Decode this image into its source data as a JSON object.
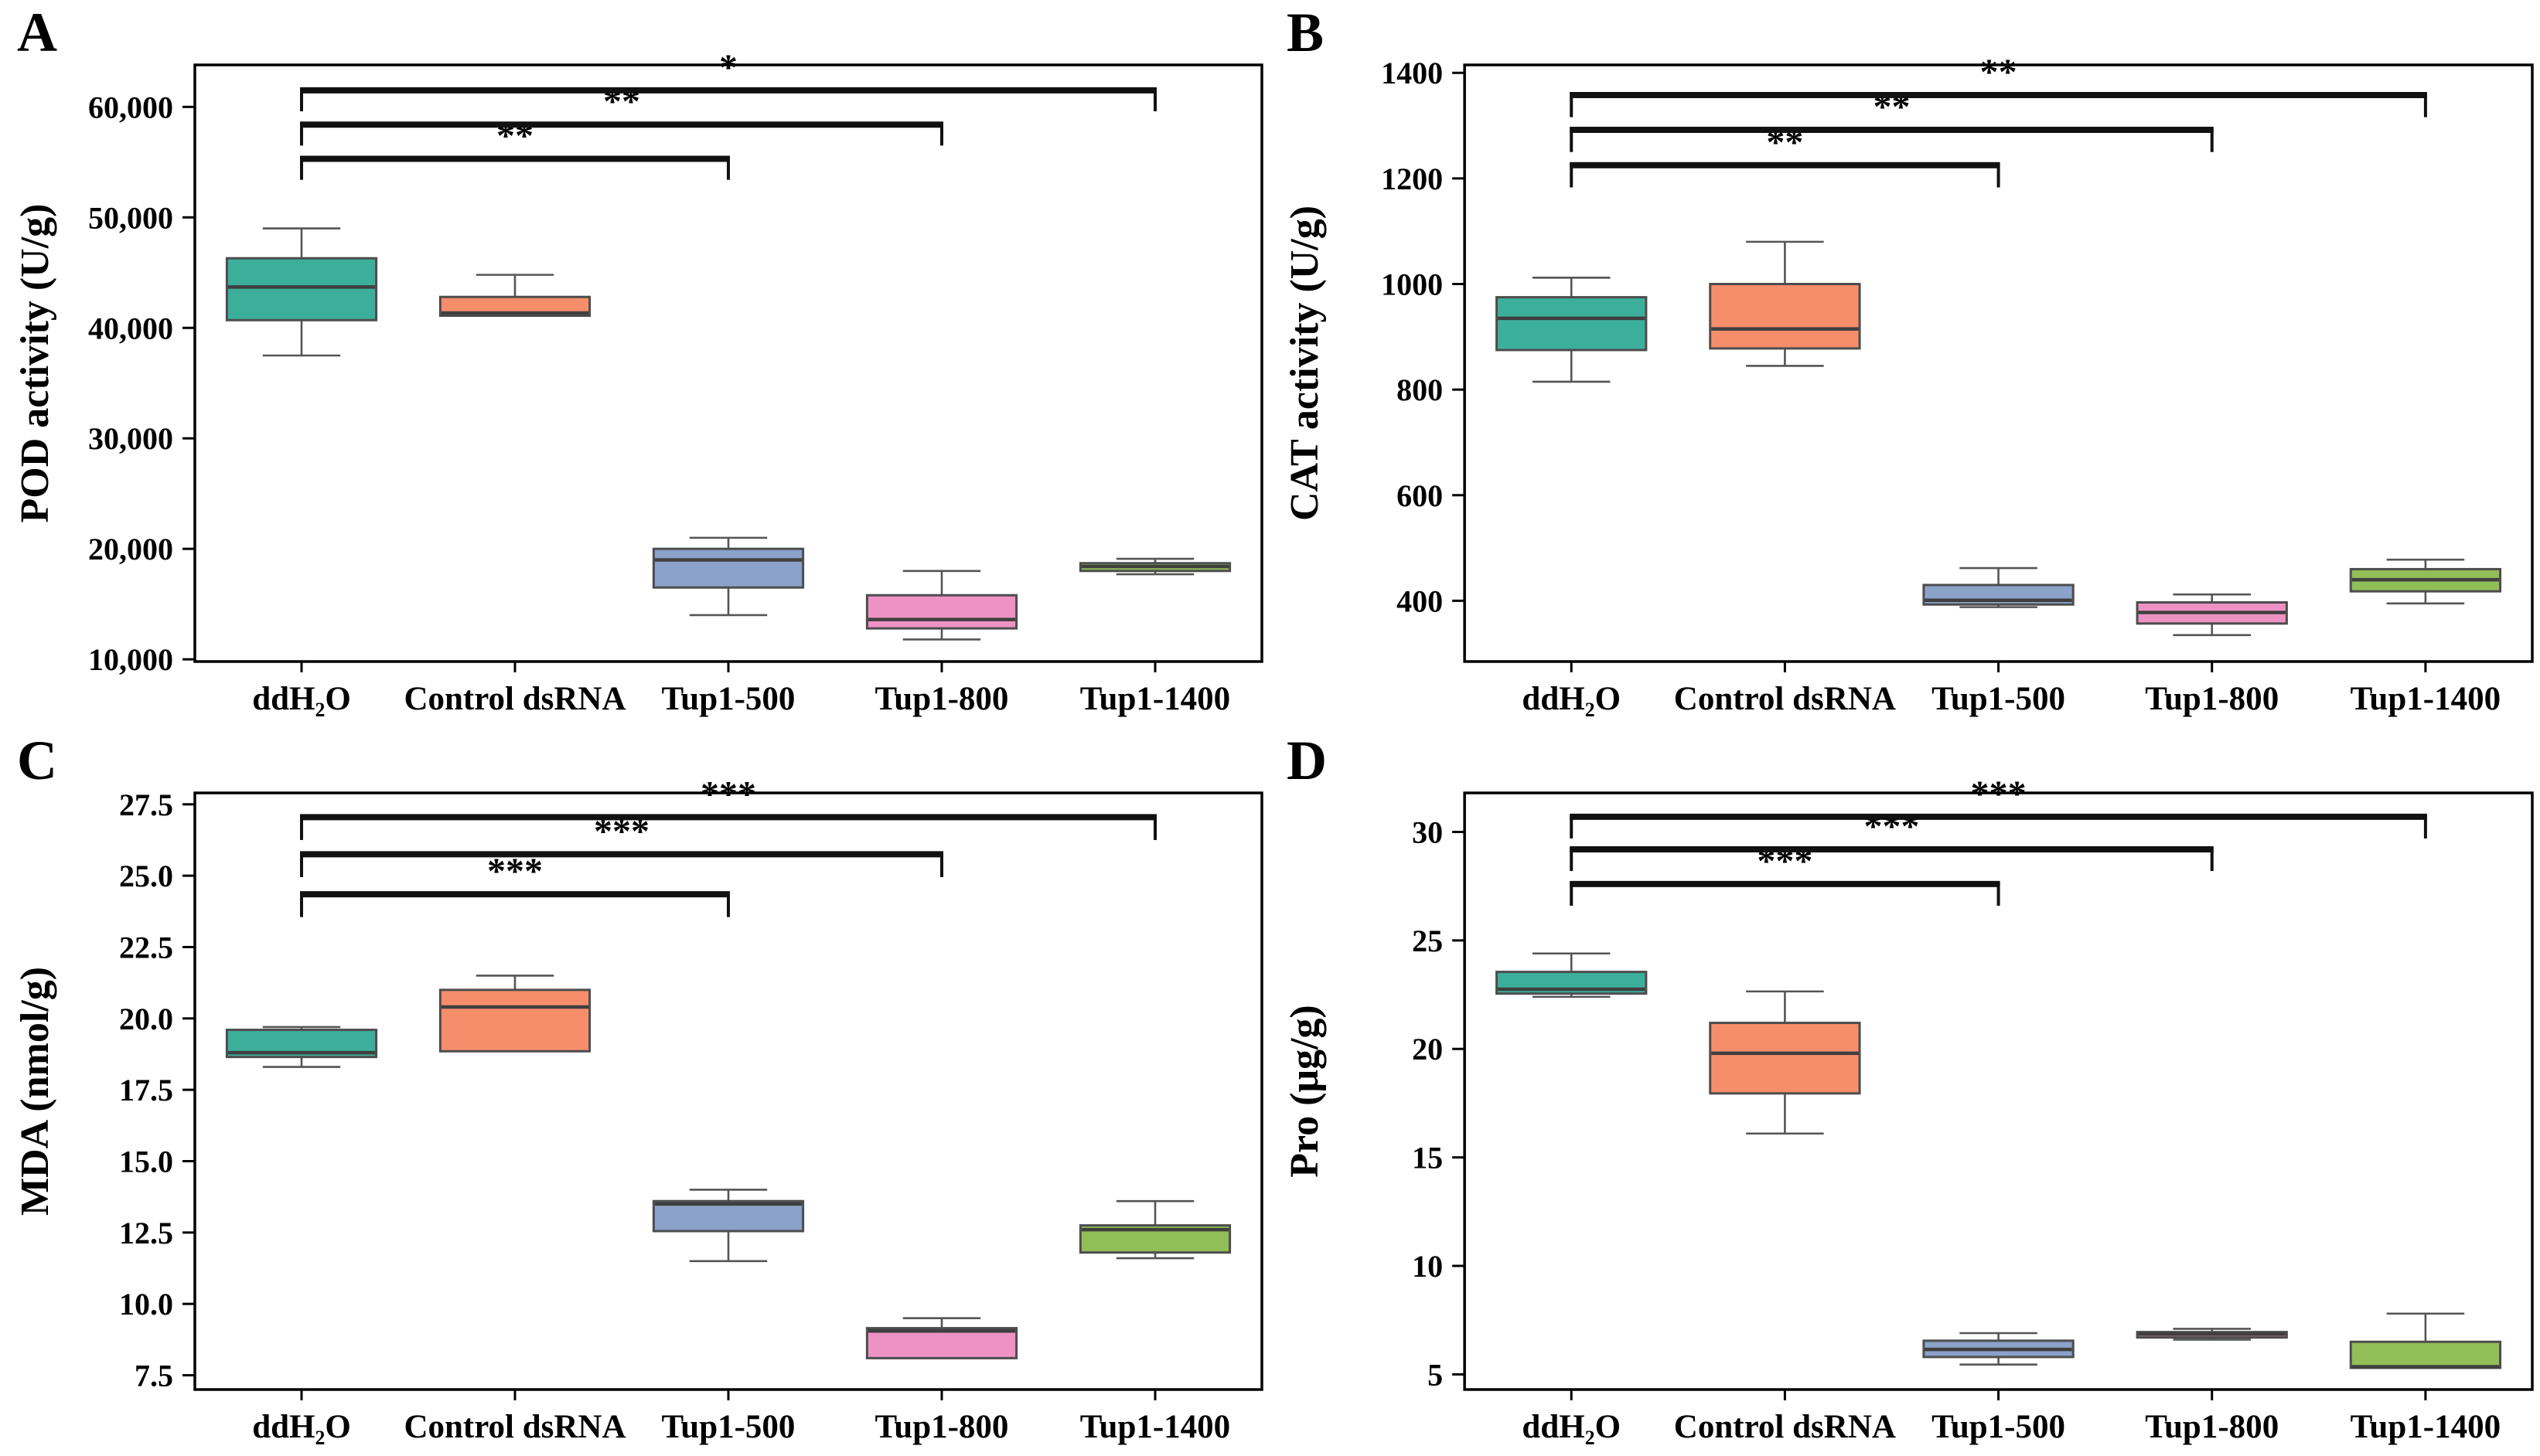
{
  "figure": {
    "background": "#ffffff"
  },
  "style": {
    "box_colors": [
      "#3CAF9B",
      "#F78E6B",
      "#8BA2CA",
      "#EE92C4",
      "#92BE57"
    ],
    "edge_color": "#4d4d4d",
    "whisker_color": "#555555",
    "median_color": "#3f3f3f",
    "axis_color": "#000000",
    "bracket_color": "#111111",
    "star_color": "#333333"
  },
  "chart_data": [
    {
      "type": "box",
      "panel_label": "A",
      "ylabel": "POD activity (U/g)",
      "ylim": [
        9800,
        63800
      ],
      "ytick_values": [
        10000,
        20000,
        30000,
        40000,
        50000,
        60000
      ],
      "ytick_labels": [
        "10,000",
        "20,000",
        "30,000",
        "40,000",
        "50,000",
        "60,000"
      ],
      "categories": [
        "ddH₂O",
        "Control dsRNA",
        "Tup1-500",
        "Tup1-800",
        "Tup1-1400"
      ],
      "series": [
        {
          "name": "ddH₂O",
          "min": 37500,
          "q1": 40700,
          "median": 43700,
          "q3": 46300,
          "max": 49000
        },
        {
          "name": "Control dsRNA",
          "min": 41100,
          "q1": 41100,
          "median": 41350,
          "q3": 42800,
          "max": 44800
        },
        {
          "name": "Tup1-500",
          "min": 14000,
          "q1": 16500,
          "median": 19000,
          "q3": 20000,
          "max": 21000
        },
        {
          "name": "Tup1-800",
          "min": 11800,
          "q1": 12800,
          "median": 13600,
          "q3": 15800,
          "max": 18000
        },
        {
          "name": "Tup1-1400",
          "min": 17700,
          "q1": 18000,
          "median": 18400,
          "q3": 18700,
          "max": 19100
        }
      ],
      "significance": [
        {
          "from": 0,
          "to": 2,
          "label": "**",
          "y": 55300,
          "drop": 1900
        },
        {
          "from": 0,
          "to": 3,
          "label": "**",
          "y": 58400,
          "drop": 1900
        },
        {
          "from": 0,
          "to": 4,
          "label": "*",
          "y": 61500,
          "drop": 1900
        }
      ]
    },
    {
      "type": "box",
      "panel_label": "B",
      "ylabel": "CAT activity (U/g)",
      "ylim": [
        285,
        1415
      ],
      "ytick_values": [
        400,
        600,
        800,
        1000,
        1200,
        1400
      ],
      "ytick_labels": [
        "400",
        "600",
        "800",
        "1000",
        "1200",
        "1400"
      ],
      "categories": [
        "ddH₂O",
        "Control dsRNA",
        "Tup1-500",
        "Tup1-800",
        "Tup1-1400"
      ],
      "series": [
        {
          "name": "ddH₂O",
          "min": 815,
          "q1": 875,
          "median": 935,
          "q3": 975,
          "max": 1012
        },
        {
          "name": "Control dsRNA",
          "min": 845,
          "q1": 878,
          "median": 915,
          "q3": 1000,
          "max": 1080
        },
        {
          "name": "Tup1-500",
          "min": 388,
          "q1": 393,
          "median": 401,
          "q3": 430,
          "max": 462
        },
        {
          "name": "Tup1-800",
          "min": 335,
          "q1": 357,
          "median": 378,
          "q3": 397,
          "max": 412
        },
        {
          "name": "Tup1-1400",
          "min": 395,
          "q1": 418,
          "median": 440,
          "q3": 460,
          "max": 478
        }
      ],
      "significance": [
        {
          "from": 0,
          "to": 2,
          "label": "**",
          "y": 1225,
          "drop": 42
        },
        {
          "from": 0,
          "to": 3,
          "label": "**",
          "y": 1292,
          "drop": 42
        },
        {
          "from": 0,
          "to": 4,
          "label": "**",
          "y": 1358,
          "drop": 42
        }
      ]
    },
    {
      "type": "box",
      "panel_label": "C",
      "ylabel": "MDA (nmol/g)",
      "ylim": [
        7.0,
        27.9
      ],
      "ytick_values": [
        7.5,
        10.0,
        12.5,
        15.0,
        17.5,
        20.0,
        22.5,
        25.0,
        27.5
      ],
      "ytick_labels": [
        "7.5",
        "10.0",
        "12.5",
        "15.0",
        "17.5",
        "20.0",
        "22.5",
        "25.0",
        "27.5"
      ],
      "categories": [
        "ddH₂O",
        "Control dsRNA",
        "Tup1-500",
        "Tup1-800",
        "Tup1-1400"
      ],
      "series": [
        {
          "name": "ddH₂O",
          "min": 18.3,
          "q1": 18.65,
          "median": 18.8,
          "q3": 19.6,
          "max": 19.7
        },
        {
          "name": "Control dsRNA",
          "min": 18.85,
          "q1": 18.85,
          "median": 20.4,
          "q3": 21.0,
          "max": 21.5
        },
        {
          "name": "Tup1-500",
          "min": 11.5,
          "q1": 12.55,
          "median": 13.5,
          "q3": 13.6,
          "max": 14.0
        },
        {
          "name": "Tup1-800",
          "min": 8.1,
          "q1": 8.1,
          "median": 9.05,
          "q3": 9.15,
          "max": 9.5
        },
        {
          "name": "Tup1-1400",
          "min": 11.6,
          "q1": 11.8,
          "median": 12.6,
          "q3": 12.75,
          "max": 13.6
        }
      ],
      "significance": [
        {
          "from": 0,
          "to": 2,
          "label": "***",
          "y": 24.35,
          "drop": 0.8
        },
        {
          "from": 0,
          "to": 3,
          "label": "***",
          "y": 25.75,
          "drop": 0.8
        },
        {
          "from": 0,
          "to": 4,
          "label": "***",
          "y": 27.05,
          "drop": 0.8
        }
      ]
    },
    {
      "type": "box",
      "panel_label": "D",
      "ylabel": "Pro (μg/g)",
      "ylim": [
        4.3,
        31.8
      ],
      "ytick_values": [
        5,
        10,
        15,
        20,
        25,
        30
      ],
      "ytick_labels": [
        "5",
        "10",
        "15",
        "20",
        "25",
        "30"
      ],
      "categories": [
        "ddH₂O",
        "Control dsRNA",
        "Tup1-500",
        "Tup1-800",
        "Tup1-1400"
      ],
      "series": [
        {
          "name": "ddH₂O",
          "min": 22.4,
          "q1": 22.55,
          "median": 22.75,
          "q3": 23.55,
          "max": 24.4
        },
        {
          "name": "Control dsRNA",
          "min": 16.1,
          "q1": 17.95,
          "median": 19.8,
          "q3": 21.2,
          "max": 22.65
        },
        {
          "name": "Tup1-500",
          "min": 5.45,
          "q1": 5.8,
          "median": 6.15,
          "q3": 6.55,
          "max": 6.9
        },
        {
          "name": "Tup1-800",
          "min": 6.6,
          "q1": 6.7,
          "median": 6.85,
          "q3": 6.95,
          "max": 7.1
        },
        {
          "name": "Tup1-1400",
          "min": 5.3,
          "q1": 5.3,
          "median": 5.35,
          "q3": 6.5,
          "max": 7.8
        }
      ],
      "significance": [
        {
          "from": 0,
          "to": 2,
          "label": "***",
          "y": 27.6,
          "drop": 1.0
        },
        {
          "from": 0,
          "to": 3,
          "label": "***",
          "y": 29.2,
          "drop": 1.0
        },
        {
          "from": 0,
          "to": 4,
          "label": "***",
          "y": 30.7,
          "drop": 1.0
        }
      ]
    }
  ]
}
